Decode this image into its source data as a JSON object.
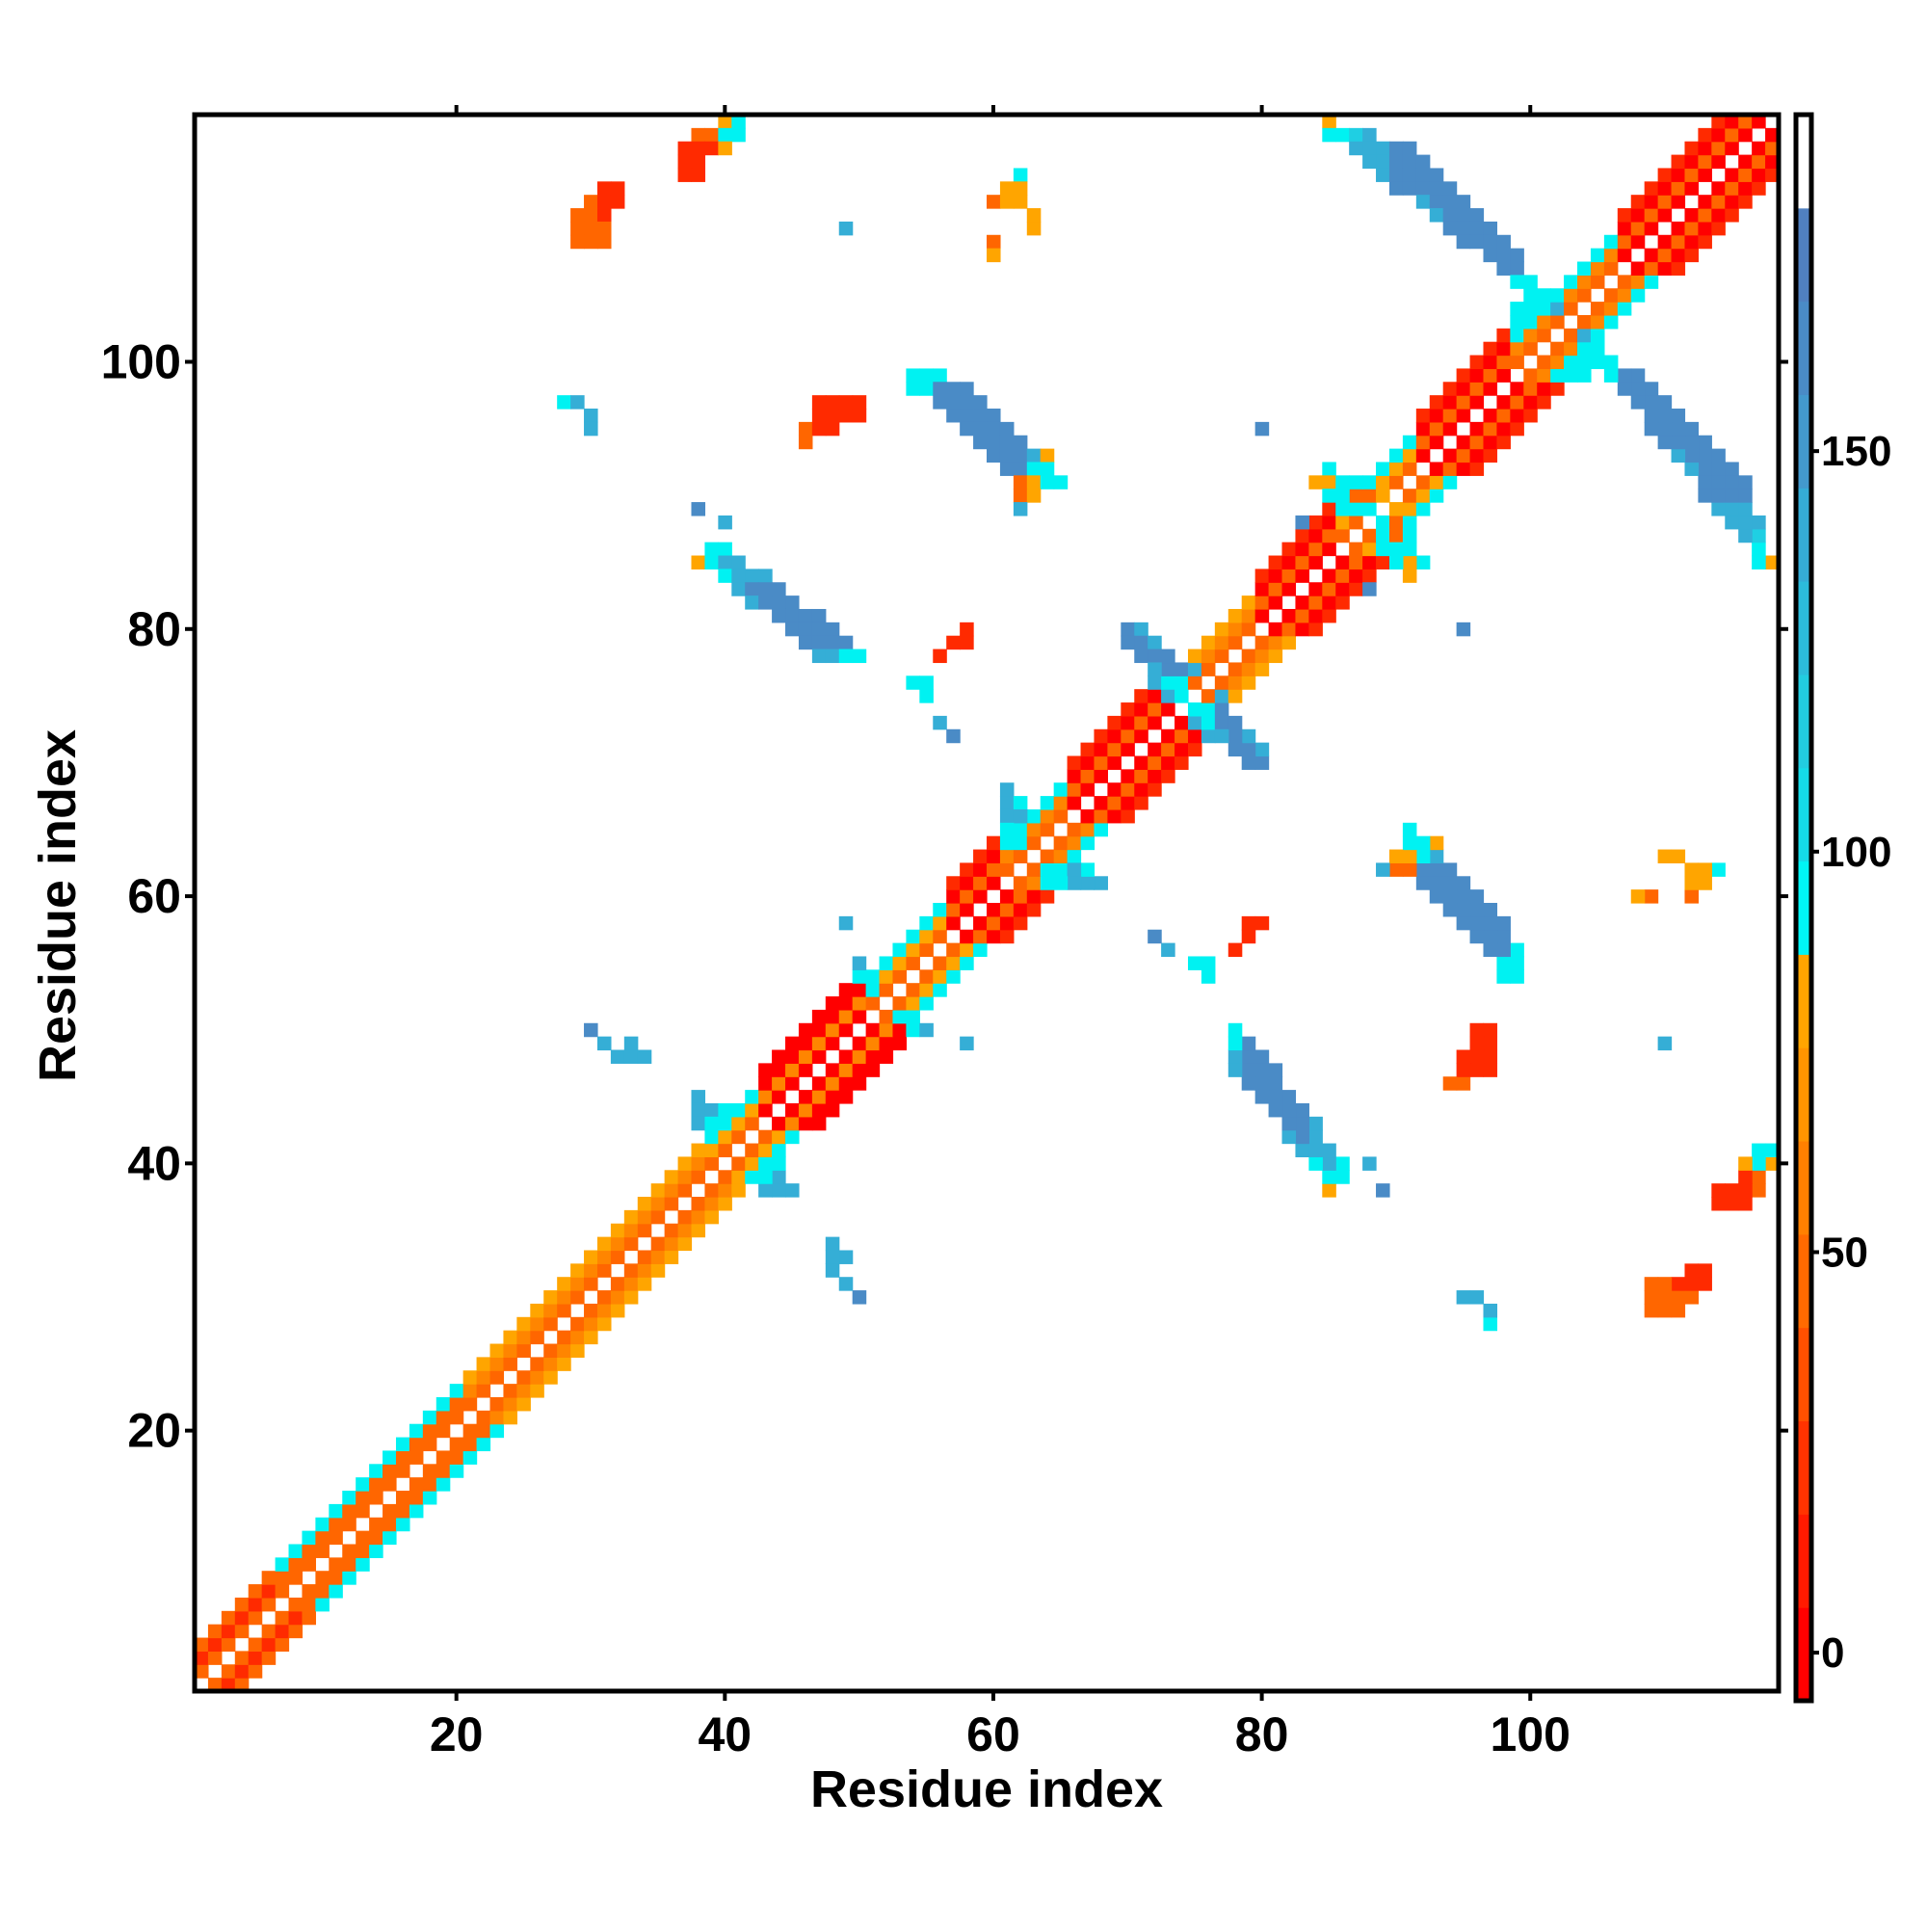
{
  "chart_data": {
    "type": "heatmap",
    "title": "",
    "xlabel": "Residue index",
    "ylabel": "Residue index",
    "n_residues": 118,
    "xlim": [
      0.5,
      118.5
    ],
    "ylim": [
      0.5,
      118.5
    ],
    "x_ticks": [
      20,
      40,
      60,
      80,
      100
    ],
    "y_ticks": [
      20,
      40,
      60,
      80,
      100
    ],
    "x_tick_labels": [
      "20",
      "40",
      "60",
      "80",
      "100"
    ],
    "y_tick_labels": [
      "20",
      "40",
      "60",
      "80",
      "100"
    ],
    "symmetric": true,
    "color_classes": {
      "r": {
        "value": 0,
        "color": "#ff0000"
      },
      "R": {
        "value": 12,
        "color": "#ff2a00"
      },
      "o": {
        "value": 30,
        "color": "#ff6600"
      },
      "O": {
        "value": 45,
        "color": "#ff8500"
      },
      "a": {
        "value": 65,
        "color": "#ffa500"
      },
      "c": {
        "value": 85,
        "color": "#00f2f2"
      },
      "t": {
        "value": 110,
        "color": "#1fcfe3"
      },
      "u": {
        "value": 135,
        "color": "#35aed6"
      },
      "b": {
        "value": 160,
        "color": "#4a8bc6"
      }
    },
    "diagonal_segments": [
      {
        "from": 1,
        "to": 6,
        "offsets": "oRo."
      },
      {
        "from": 7,
        "to": 20,
        "offsets": "ooc."
      },
      {
        "from": 21,
        "to": 38,
        "offsets": "oOa."
      },
      {
        "from": 39,
        "to": 42,
        "offsets": "oac."
      },
      {
        "from": 43,
        "to": 50,
        "offsets": "rOrr"
      },
      {
        "from": 51,
        "to": 56,
        "offsets": "oac."
      },
      {
        "from": 57,
        "to": 60,
        "offsets": "rorR"
      },
      {
        "from": 61,
        "to": 65,
        "offsets": "oOc."
      },
      {
        "from": 66,
        "to": 73,
        "offsets": "rorR"
      },
      {
        "from": 74,
        "to": 79,
        "offsets": "oOa."
      },
      {
        "from": 80,
        "to": 85,
        "offsets": "rorR"
      },
      {
        "from": 86,
        "to": 91,
        "offsets": "oac."
      },
      {
        "from": 92,
        "to": 98,
        "offsets": "rorR"
      },
      {
        "from": 99,
        "to": 106,
        "offsets": "oOc."
      },
      {
        "from": 107,
        "to": 118,
        "offsets": "rorR"
      }
    ],
    "contact_runs": [
      [
        40,
        118,
        "ac"
      ],
      [
        38,
        117,
        "oocc"
      ],
      [
        37,
        116,
        "RRRa"
      ],
      [
        37,
        115,
        "RR"
      ],
      [
        37,
        114,
        "RR"
      ],
      [
        31,
        113,
        "RR"
      ],
      [
        30,
        112,
        "oRR"
      ],
      [
        29,
        111,
        "ooR"
      ],
      [
        29,
        110,
        "ooo"
      ],
      [
        29,
        109,
        "ooo"
      ],
      [
        85,
        118,
        "a"
      ],
      [
        85,
        117,
        "cctu"
      ],
      [
        87,
        116,
        "uuubb"
      ],
      [
        88,
        115,
        "uubbb"
      ],
      [
        89,
        114,
        "ubbbb"
      ],
      [
        90,
        113,
        "bbbbb"
      ],
      [
        92,
        112,
        "ubbb"
      ],
      [
        93,
        111,
        "ubbb"
      ],
      [
        94,
        110,
        "bbbb"
      ],
      [
        95,
        109,
        "bbbb"
      ],
      [
        97,
        108,
        "bbb"
      ],
      [
        98,
        107,
        "bb"
      ],
      [
        62,
        114,
        "c"
      ],
      [
        61,
        113,
        "aa"
      ],
      [
        60,
        112,
        "oaa"
      ],
      [
        49,
        110,
        "u"
      ],
      [
        60,
        109,
        "o"
      ],
      [
        28,
        97,
        "cu"
      ],
      [
        30,
        96,
        "u"
      ],
      [
        30,
        95,
        "u"
      ],
      [
        80,
        95,
        "b"
      ],
      [
        47,
        97,
        "RRRR"
      ],
      [
        47,
        96,
        "RRRR"
      ],
      [
        46,
        95,
        "oRR"
      ],
      [
        46,
        94,
        "o"
      ],
      [
        54,
        99,
        "ccc"
      ],
      [
        54,
        98,
        "ccbbb"
      ],
      [
        56,
        97,
        "bbbb"
      ],
      [
        57,
        96,
        "bbbb"
      ],
      [
        58,
        95,
        "bbbb"
      ],
      [
        59,
        94,
        "bbbb"
      ],
      [
        60,
        93,
        "bbbuo"
      ],
      [
        61,
        92,
        "bbcc"
      ],
      [
        62,
        91,
        "oacc"
      ],
      [
        62,
        90,
        "oa"
      ],
      [
        62,
        89,
        "c"
      ],
      [
        38,
        89,
        "b"
      ],
      [
        40,
        88,
        "u"
      ],
      [
        39,
        86,
        "cc"
      ],
      [
        38,
        85,
        "acuu"
      ],
      [
        40,
        84,
        "cuuu"
      ],
      [
        41,
        83,
        "ubbb"
      ],
      [
        42,
        82,
        "ubbb"
      ],
      [
        44,
        81,
        "bbbb"
      ],
      [
        45,
        80,
        "bbbb"
      ],
      [
        46,
        79,
        "bbbb"
      ],
      [
        47,
        78,
        "uucc"
      ],
      [
        58,
        80,
        "R"
      ],
      [
        57,
        79,
        "RR"
      ],
      [
        56,
        78,
        "R"
      ],
      [
        54,
        76,
        "cc"
      ],
      [
        55,
        75,
        "c"
      ],
      [
        56,
        73,
        "u"
      ],
      [
        57,
        72,
        "b"
      ],
      [
        70,
        80,
        "bu"
      ],
      [
        70,
        79,
        "bbu"
      ],
      [
        71,
        78,
        "bbb"
      ],
      [
        72,
        77,
        "ubbu"
      ],
      [
        72,
        76,
        "ucc"
      ],
      [
        73,
        75,
        "uc"
      ],
      [
        61,
        68,
        "u"
      ],
      [
        61,
        67,
        "uc"
      ],
      [
        61,
        66,
        "uu"
      ],
      [
        61,
        65,
        "cc"
      ],
      [
        62,
        64,
        "c"
      ],
      [
        38,
        45,
        "u"
      ],
      [
        38,
        44,
        "uuc"
      ],
      [
        38,
        43,
        "ucc"
      ],
      [
        39,
        42,
        "c"
      ],
      [
        50,
        55,
        "u"
      ],
      [
        50,
        54,
        "cc"
      ],
      [
        51,
        53,
        "c"
      ],
      [
        85,
        92,
        "c"
      ],
      [
        84,
        91,
        "aacc"
      ],
      [
        85,
        90,
        "ccooa"
      ],
      [
        86,
        89,
        "ccc"
      ],
      [
        83,
        88,
        "b"
      ],
      [
        99,
        106,
        "cc"
      ],
      [
        100,
        105,
        "ccc"
      ],
      [
        99,
        104,
        "cccu"
      ],
      [
        99,
        103,
        "cc"
      ],
      [
        30,
        50,
        "b"
      ],
      [
        31,
        49,
        "u"
      ],
      [
        33,
        49,
        "u"
      ],
      [
        32,
        48,
        "uuu"
      ],
      [
        49,
        58,
        "u"
      ],
      [
        93,
        64,
        "a"
      ],
      [
        89,
        62,
        "u"
      ],
      [
        110,
        49,
        "u"
      ],
      [
        108,
        60,
        "a"
      ],
      [
        110,
        63,
        "aa"
      ]
    ],
    "colorbar": {
      "range": [
        -6,
        192
      ],
      "ticks": [
        0,
        50,
        100,
        150
      ],
      "tick_labels": [
        "0",
        "50",
        "100",
        "150"
      ],
      "bands": [
        "#ff0000",
        "#ff1a00",
        "#ff3300",
        "#ff5000",
        "#ff6a00",
        "#ff8000",
        "#ff9500",
        "#ffa500",
        "#00f5f5",
        "#15dbe8",
        "#22cce0",
        "#2cbcdb",
        "#35acd6",
        "#4399cd",
        "#4a8bc6",
        "#5080c0",
        "#ffffff"
      ]
    }
  }
}
